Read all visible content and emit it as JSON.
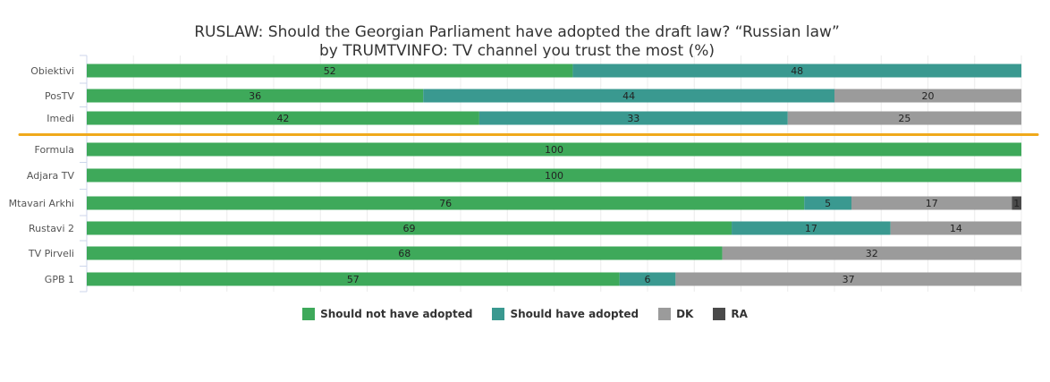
{
  "chart_data": {
    "type": "bar",
    "orientation": "horizontal",
    "stacked": "percent",
    "title_line1": "RUSLAW: Should the Georgian Parliament have adopted the draft law? “Russian law”",
    "title_line2": "by TRUMTVINFO: TV channel you trust the most (%)",
    "categories": [
      "Obiektivi",
      "PosTV",
      "Imedi",
      "Formula",
      "Adjara TV",
      "Mtavari Arkhi",
      "Rustavi 2",
      "TV Pirveli",
      "GPB 1"
    ],
    "series": [
      {
        "name": "Should not have adopted",
        "color": "#3ea95a",
        "values": [
          52,
          36,
          42,
          100,
          100,
          76,
          69,
          68,
          57
        ]
      },
      {
        "name": "Should have adopted",
        "color": "#3a9990",
        "values": [
          48,
          44,
          33,
          0,
          0,
          5,
          17,
          0,
          6
        ]
      },
      {
        "name": "DK",
        "color": "#9b9b9b",
        "values": [
          0,
          20,
          25,
          0,
          0,
          17,
          14,
          32,
          37
        ]
      },
      {
        "name": "RA",
        "color": "#4a4a4a",
        "values": [
          0,
          0,
          0,
          0,
          0,
          1,
          0,
          0,
          0
        ]
      }
    ],
    "xlim": [
      0,
      100
    ],
    "grid": true,
    "legend_position": "bottom-center",
    "separator_color": "#f0a91b",
    "separator_after_category": "Imedi"
  }
}
